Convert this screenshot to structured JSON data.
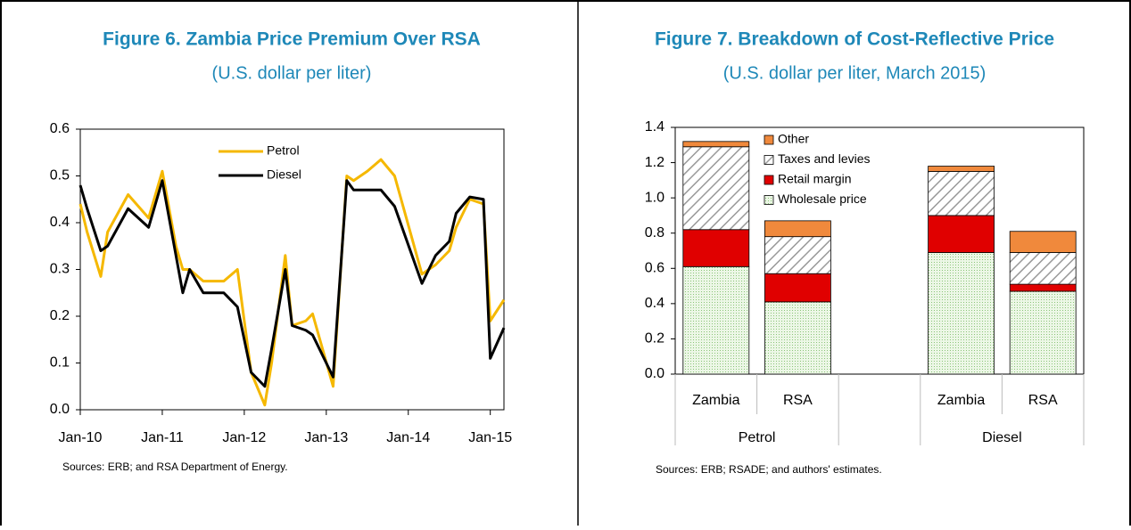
{
  "chart_data": [
    {
      "type": "line",
      "title": "Figure 6.  Zambia Price Premium Over RSA",
      "subtitle": "(U.S. dollar per liter)",
      "source": "Sources: ERB; and RSA Department of Energy.",
      "x": [
        "Jan-10",
        "Feb-10",
        "Apr-10",
        "May-10",
        "Aug-10",
        "Nov-10",
        "Jan-11",
        "Mar-11",
        "Apr-11",
        "May-11",
        "Jul-11",
        "Oct-11",
        "Dec-11",
        "Feb-12",
        "Apr-12",
        "May-12",
        "Jul-12",
        "Aug-12",
        "Oct-12",
        "Nov-12",
        "Feb-13",
        "Apr-13",
        "May-13",
        "Jul-13",
        "Sep-13",
        "Nov-13",
        "Mar-14",
        "May-14",
        "Jul-14",
        "Aug-14",
        "Oct-14",
        "Dec-14",
        "Jan-15",
        "Mar-15"
      ],
      "series": [
        {
          "name": "Petrol",
          "color": "#f5b800",
          "values": [
            0.44,
            0.38,
            0.285,
            0.38,
            0.46,
            0.41,
            0.51,
            0.35,
            0.3,
            0.3,
            0.275,
            0.275,
            0.3,
            0.08,
            0.01,
            0.1,
            0.33,
            0.18,
            0.19,
            0.205,
            0.05,
            0.5,
            0.49,
            0.51,
            0.535,
            0.5,
            0.29,
            0.31,
            0.34,
            0.39,
            0.45,
            0.44,
            0.19,
            0.235
          ]
        },
        {
          "name": "Diesel",
          "color": "#000000",
          "values": [
            0.48,
            0.43,
            0.34,
            0.35,
            0.43,
            0.39,
            0.49,
            0.33,
            0.25,
            0.3,
            0.25,
            0.25,
            0.22,
            0.08,
            0.05,
            0.13,
            0.3,
            0.18,
            0.17,
            0.16,
            0.07,
            0.49,
            0.47,
            0.47,
            0.47,
            0.435,
            0.27,
            0.33,
            0.36,
            0.42,
            0.455,
            0.45,
            0.11,
            0.175
          ]
        }
      ],
      "xlim": [
        "Jan-10",
        "Mar-15"
      ],
      "xticks": [
        "Jan-10",
        "Jan-11",
        "Jan-12",
        "Jan-13",
        "Jan-14",
        "Jan-15"
      ],
      "ylim": [
        0,
        0.6
      ],
      "yticks": [
        {
          "value": 0,
          "label": "0.0"
        },
        0.1,
        0.2,
        0.3,
        0.4,
        0.5,
        0.6
      ]
    },
    {
      "type": "bar",
      "stacked": true,
      "title": "Figure 7.  Breakdown of Cost-Reflective Price",
      "subtitle": "(U.S. dollar per liter, March 2015)",
      "source": "Sources: ERB; RSADE; and authors' estimates.",
      "groups": [
        {
          "name": "Petrol",
          "categories": [
            "Zambia",
            "RSA"
          ]
        },
        {
          "name": "Diesel",
          "categories": [
            "Zambia",
            "RSA"
          ]
        }
      ],
      "series": [
        {
          "name": "Wholesale price",
          "color": "#dcefd2",
          "pattern": "dots",
          "values": [
            0.61,
            0.41,
            0.69,
            0.47
          ]
        },
        {
          "name": "Retail margin",
          "color": "#e00000",
          "values": [
            0.21,
            0.16,
            0.21,
            0.04
          ]
        },
        {
          "name": "Taxes and levies",
          "color": "#ffffff",
          "pattern": "hatch",
          "values": [
            0.47,
            0.21,
            0.25,
            0.18
          ]
        },
        {
          "name": "Other",
          "color": "#f0893c",
          "values": [
            0.03,
            0.09,
            0.03,
            0.12
          ]
        }
      ],
      "ylim": [
        0,
        1.4
      ],
      "yticks": [
        {
          "value": 0,
          "label": "0.0"
        },
        0.2,
        0.4,
        0.6,
        0.8,
        {
          "value": 1,
          "label": "1.0"
        },
        1.2,
        1.4
      ]
    }
  ]
}
